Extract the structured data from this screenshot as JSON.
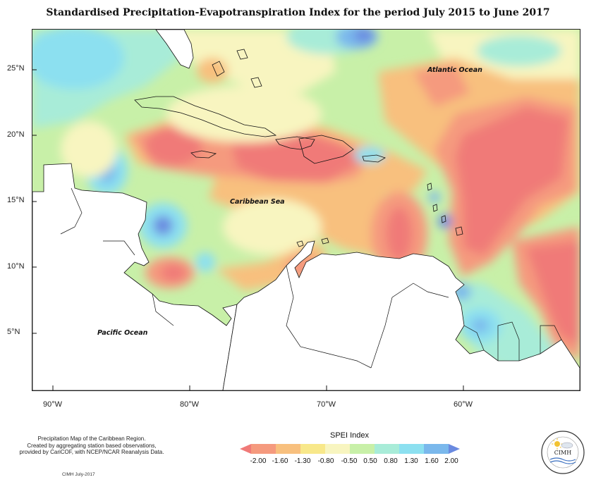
{
  "title": "Standardised Precipitation-Evapotranspiration Index for the period July 2015 to June 2017",
  "map": {
    "lon_range": [
      -92,
      -52
    ],
    "lat_range": [
      2,
      28
    ],
    "y_ticks": [
      {
        "lat": 25,
        "label": "25°N"
      },
      {
        "lat": 20,
        "label": "20°N"
      },
      {
        "lat": 15,
        "label": "15°N"
      },
      {
        "lat": 10,
        "label": "10°N"
      },
      {
        "lat": 5,
        "label": "5°N"
      }
    ],
    "x_ticks": [
      {
        "lon": -90,
        "label": "90°W"
      },
      {
        "lon": -80,
        "label": "80°W"
      },
      {
        "lon": -70,
        "label": "70°W"
      },
      {
        "lon": -60,
        "label": "60°W"
      }
    ],
    "labels": [
      {
        "name": "atlantic",
        "text": "Atlantic Ocean"
      },
      {
        "name": "caribbean",
        "text": "Caribbean Sea"
      },
      {
        "name": "pacific",
        "text": "Pacific Ocean"
      }
    ]
  },
  "legend": {
    "title": "SPEI Index",
    "labels": [
      "-2.00",
      "-1.60",
      "-1.30",
      "-0.80",
      "-0.50",
      "0.50",
      "0.80",
      "1.30",
      "1.60",
      "2.00"
    ],
    "colors": [
      "#f07a78",
      "#f59a7e",
      "#f8c07e",
      "#f8e88a",
      "#f8f5c0",
      "#c8f0a8",
      "#a8ecd8",
      "#8ce0f0",
      "#7ab8ec",
      "#6a8ae0"
    ]
  },
  "credit": {
    "lines": [
      "Precipitation Map of the Caribbean Region.",
      "Created by aggregating station based observations,",
      "provided by CariCOF, with NCEP/NCAR Reanalysis Data."
    ],
    "date": "CIMH July-2017"
  },
  "logo": {
    "text": "CIMH",
    "icon": "sun-cloud-icon"
  }
}
